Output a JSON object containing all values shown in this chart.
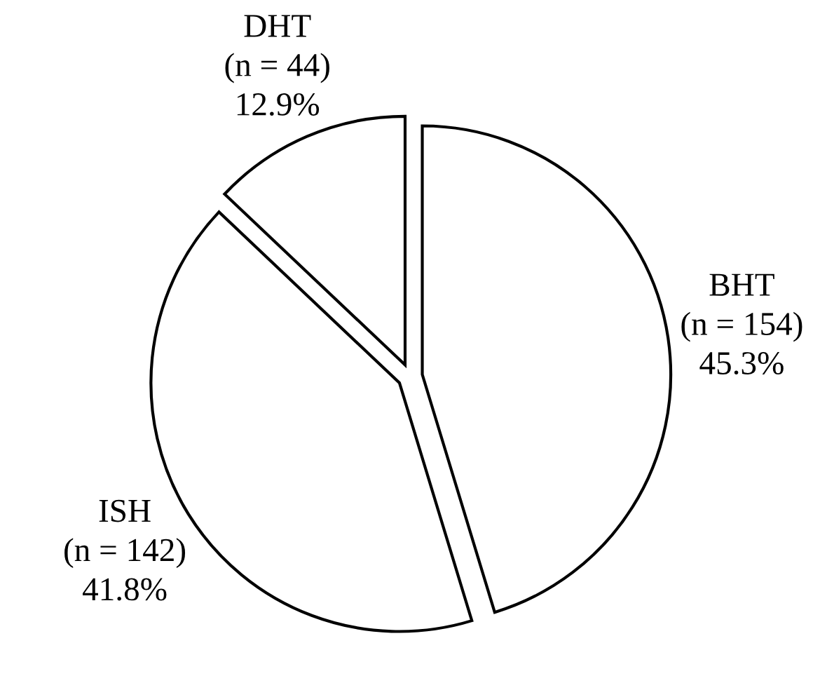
{
  "chart_data": {
    "type": "pie",
    "categories": [
      "BHT",
      "ISH",
      "DHT"
    ],
    "values": [
      154,
      142,
      44
    ],
    "value_labels": [
      "(n = 154)\n45.3%",
      "(n = 142)\n41.8%",
      "(n = 44)\n12.9%"
    ],
    "colors": [
      "#ffffff",
      "#ffffff",
      "#ffffff"
    ]
  }
}
